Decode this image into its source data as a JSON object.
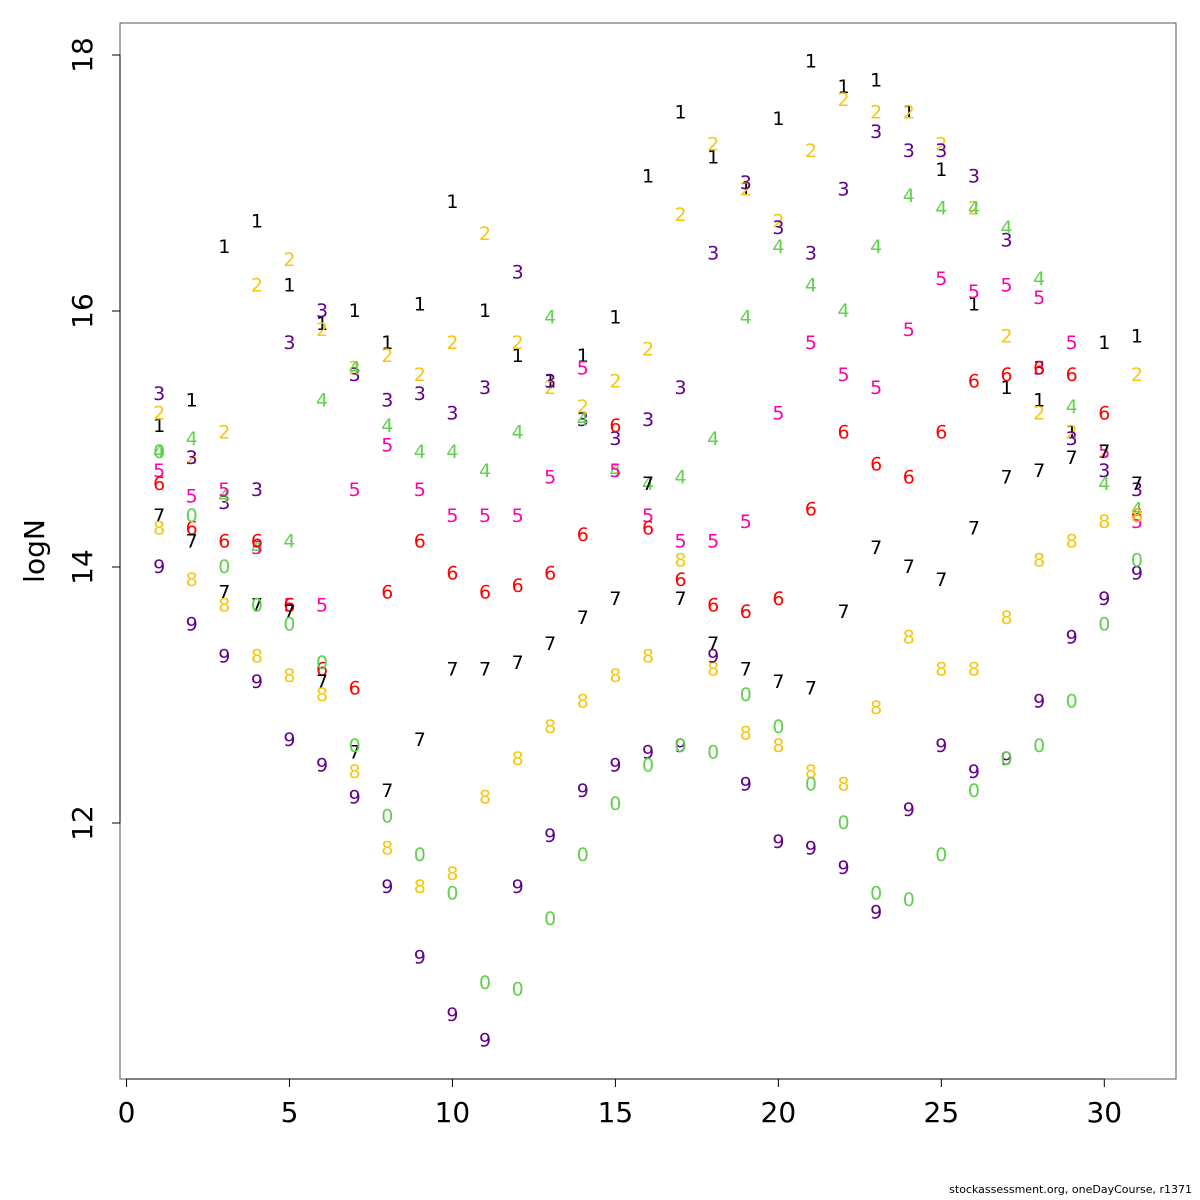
{
  "footer": "stockassessment.org, oneDayCourse, r1371",
  "chart_data": {
    "type": "scatter",
    "title": "",
    "xlabel": "",
    "ylabel": "logN",
    "xlim": [
      -0.2,
      32.2
    ],
    "ylim": [
      10.0,
      18.25
    ],
    "xticks": [
      0,
      5,
      10,
      15,
      20,
      25,
      30
    ],
    "yticks": [
      12,
      14,
      16,
      18
    ],
    "grid": false,
    "marker": "series label glyph",
    "x": [
      1,
      2,
      3,
      4,
      5,
      6,
      7,
      8,
      9,
      10,
      11,
      12,
      13,
      14,
      15,
      16,
      17,
      18,
      19,
      20,
      21,
      22,
      23,
      24,
      25,
      26,
      27,
      28,
      29,
      30,
      31
    ],
    "series": [
      {
        "name": "1",
        "color": "#000000",
        "values": [
          15.1,
          15.3,
          16.5,
          16.7,
          16.2,
          15.9,
          16.0,
          15.75,
          16.05,
          16.85,
          16.0,
          15.65,
          15.45,
          15.65,
          15.95,
          17.05,
          17.55,
          17.2,
          16.95,
          17.5,
          17.95,
          17.75,
          17.8,
          17.55,
          17.1,
          16.05,
          15.4,
          15.3,
          15.05,
          15.75,
          15.8
        ]
      },
      {
        "name": "2",
        "color": "#f5c710",
        "values": [
          15.2,
          14.85,
          15.05,
          16.2,
          16.4,
          15.85,
          15.55,
          15.65,
          15.5,
          15.75,
          16.6,
          15.75,
          15.4,
          15.25,
          15.45,
          15.7,
          16.75,
          17.3,
          16.95,
          16.7,
          17.25,
          17.65,
          17.55,
          17.55,
          17.3,
          16.8,
          15.8,
          15.2,
          15.05,
          14.9,
          15.5
        ]
      },
      {
        "name": "3",
        "color": "#61008a",
        "values": [
          15.35,
          14.85,
          14.5,
          14.6,
          15.75,
          16.0,
          15.5,
          15.3,
          15.35,
          15.2,
          15.4,
          16.3,
          15.45,
          15.15,
          15.0,
          15.15,
          15.4,
          16.45,
          17.0,
          16.65,
          16.45,
          16.95,
          17.4,
          17.25,
          17.25,
          17.05,
          16.55,
          15.55,
          15.0,
          14.75,
          14.6
        ]
      },
      {
        "name": "4",
        "color": "#61d04f",
        "values": [
          14.9,
          15.0,
          14.55,
          14.15,
          14.2,
          15.3,
          15.55,
          15.1,
          14.9,
          14.9,
          14.75,
          15.05,
          15.95,
          15.15,
          14.75,
          14.65,
          14.7,
          15.0,
          15.95,
          16.5,
          16.2,
          16.0,
          16.5,
          16.9,
          16.8,
          16.8,
          16.65,
          16.25,
          15.25,
          14.65,
          14.45
        ]
      },
      {
        "name": "5",
        "color": "#ff00a8",
        "values": [
          14.75,
          14.55,
          14.6,
          14.15,
          13.7,
          13.7,
          14.6,
          14.95,
          14.6,
          14.4,
          14.4,
          14.4,
          14.7,
          15.55,
          14.75,
          14.4,
          14.2,
          14.2,
          14.35,
          15.2,
          15.75,
          15.5,
          15.4,
          15.85,
          16.25,
          16.15,
          16.2,
          16.1,
          15.75,
          14.9,
          14.35
        ]
      },
      {
        "name": "6",
        "color": "#ff0000",
        "values": [
          14.65,
          14.3,
          14.2,
          14.2,
          13.7,
          13.2,
          13.05,
          13.8,
          14.2,
          13.95,
          13.8,
          13.85,
          13.95,
          14.25,
          15.1,
          14.3,
          13.9,
          13.7,
          13.65,
          13.75,
          14.45,
          15.05,
          14.8,
          14.7,
          15.05,
          15.45,
          15.5,
          15.55,
          15.5,
          15.2,
          14.4
        ]
      },
      {
        "name": "7",
        "color": "#000000",
        "values": [
          14.4,
          14.2,
          13.8,
          13.7,
          13.65,
          13.1,
          12.55,
          12.25,
          12.65,
          13.2,
          13.2,
          13.25,
          13.4,
          13.6,
          13.75,
          14.65,
          13.75,
          13.4,
          13.2,
          13.1,
          13.05,
          13.65,
          14.15,
          14.0,
          13.9,
          14.3,
          14.7,
          14.75,
          14.85,
          14.9,
          14.65
        ]
      },
      {
        "name": "8",
        "color": "#f5c710",
        "values": [
          14.3,
          13.9,
          13.7,
          13.3,
          13.15,
          13.0,
          12.4,
          11.8,
          11.5,
          11.6,
          12.2,
          12.5,
          12.75,
          12.95,
          13.15,
          13.3,
          14.05,
          13.2,
          12.7,
          12.6,
          12.4,
          12.3,
          12.9,
          13.45,
          13.2,
          13.2,
          13.6,
          14.05,
          14.2,
          14.35,
          14.4
        ]
      },
      {
        "name": "9",
        "color": "#61008a",
        "values": [
          14.0,
          13.55,
          13.3,
          13.1,
          12.65,
          12.45,
          12.2,
          11.5,
          10.95,
          10.5,
          10.3,
          11.5,
          11.9,
          12.25,
          12.45,
          12.55,
          12.6,
          13.3,
          12.3,
          11.85,
          11.8,
          11.65,
          11.3,
          12.1,
          12.6,
          12.4,
          12.5,
          12.95,
          13.45,
          13.75,
          13.95
        ]
      },
      {
        "name": "0",
        "color": "#61d04f",
        "values": [
          14.9,
          14.4,
          14.0,
          13.7,
          13.55,
          13.25,
          12.6,
          12.05,
          11.75,
          11.45,
          10.75,
          10.7,
          11.25,
          11.75,
          12.15,
          12.45,
          12.6,
          12.55,
          13.0,
          12.75,
          12.3,
          12.0,
          11.45,
          11.4,
          11.75,
          12.25,
          12.5,
          12.6,
          12.95,
          13.55,
          14.05
        ]
      }
    ]
  }
}
